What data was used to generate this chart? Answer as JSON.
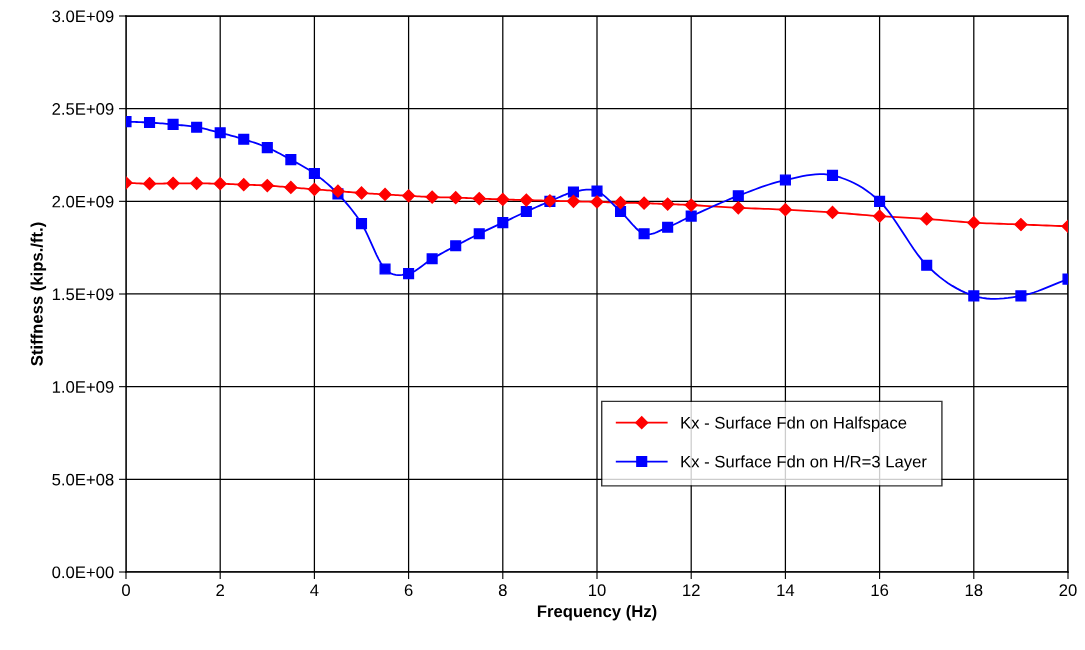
{
  "chart_data": {
    "type": "line",
    "xlabel": "Frequency (Hz)",
    "ylabel": "Stiffness (kips./ft.)",
    "xlim": [
      0,
      20
    ],
    "xticks": [
      0,
      2,
      4,
      6,
      8,
      10,
      12,
      14,
      16,
      18,
      20
    ],
    "ylim": [
      0,
      3000000000
    ],
    "yticks": [
      {
        "value": 0,
        "label": "0.0E+00"
      },
      {
        "value": 500000000,
        "label": "5.0E+08"
      },
      {
        "value": 1000000000,
        "label": "1.0E+09"
      },
      {
        "value": 1500000000,
        "label": "1.5E+09"
      },
      {
        "value": 2000000000,
        "label": "2.0E+09"
      },
      {
        "value": 2500000000,
        "label": "2.5E+09"
      },
      {
        "value": 3000000000,
        "label": "3.0E+09"
      }
    ],
    "grid": true,
    "legend": "lower right",
    "x": [
      0,
      0.5,
      1,
      1.5,
      2,
      2.5,
      3,
      3.5,
      4,
      4.5,
      5,
      5.5,
      6,
      6.5,
      7,
      7.5,
      8,
      8.5,
      9,
      9.5,
      10,
      10.5,
      11,
      11.5,
      12,
      13,
      14,
      15,
      16,
      17,
      18,
      19,
      20
    ],
    "series": [
      {
        "name": "Kx - Surface Fdn on Halfspace",
        "color": "#ff0000",
        "marker": "diamond",
        "values": [
          2100000000,
          2095000000,
          2097000000,
          2097000000,
          2095000000,
          2090000000,
          2085000000,
          2075000000,
          2065000000,
          2055000000,
          2045000000,
          2037000000,
          2030000000,
          2023000000,
          2020000000,
          2015000000,
          2010000000,
          2007000000,
          2003000000,
          2000000000,
          1997000000,
          1993000000,
          1990000000,
          1985000000,
          1980000000,
          1965000000,
          1955000000,
          1940000000,
          1920000000,
          1905000000,
          1885000000,
          1875000000,
          1865000000
        ]
      },
      {
        "name": "Kx - Surface Fdn on H/R=3 Layer",
        "color": "#0000ff",
        "marker": "square",
        "values": [
          2430000000,
          2425000000,
          2415000000,
          2400000000,
          2370000000,
          2335000000,
          2290000000,
          2225000000,
          2150000000,
          2040000000,
          1880000000,
          1635000000,
          1610000000,
          1690000000,
          1760000000,
          1825000000,
          1885000000,
          1945000000,
          2000000000,
          2050000000,
          2055000000,
          1945000000,
          1825000000,
          1860000000,
          1920000000,
          2030000000,
          2115000000,
          2140000000,
          2000000000,
          1655000000,
          1490000000,
          1490000000,
          1580000000
        ]
      }
    ]
  }
}
